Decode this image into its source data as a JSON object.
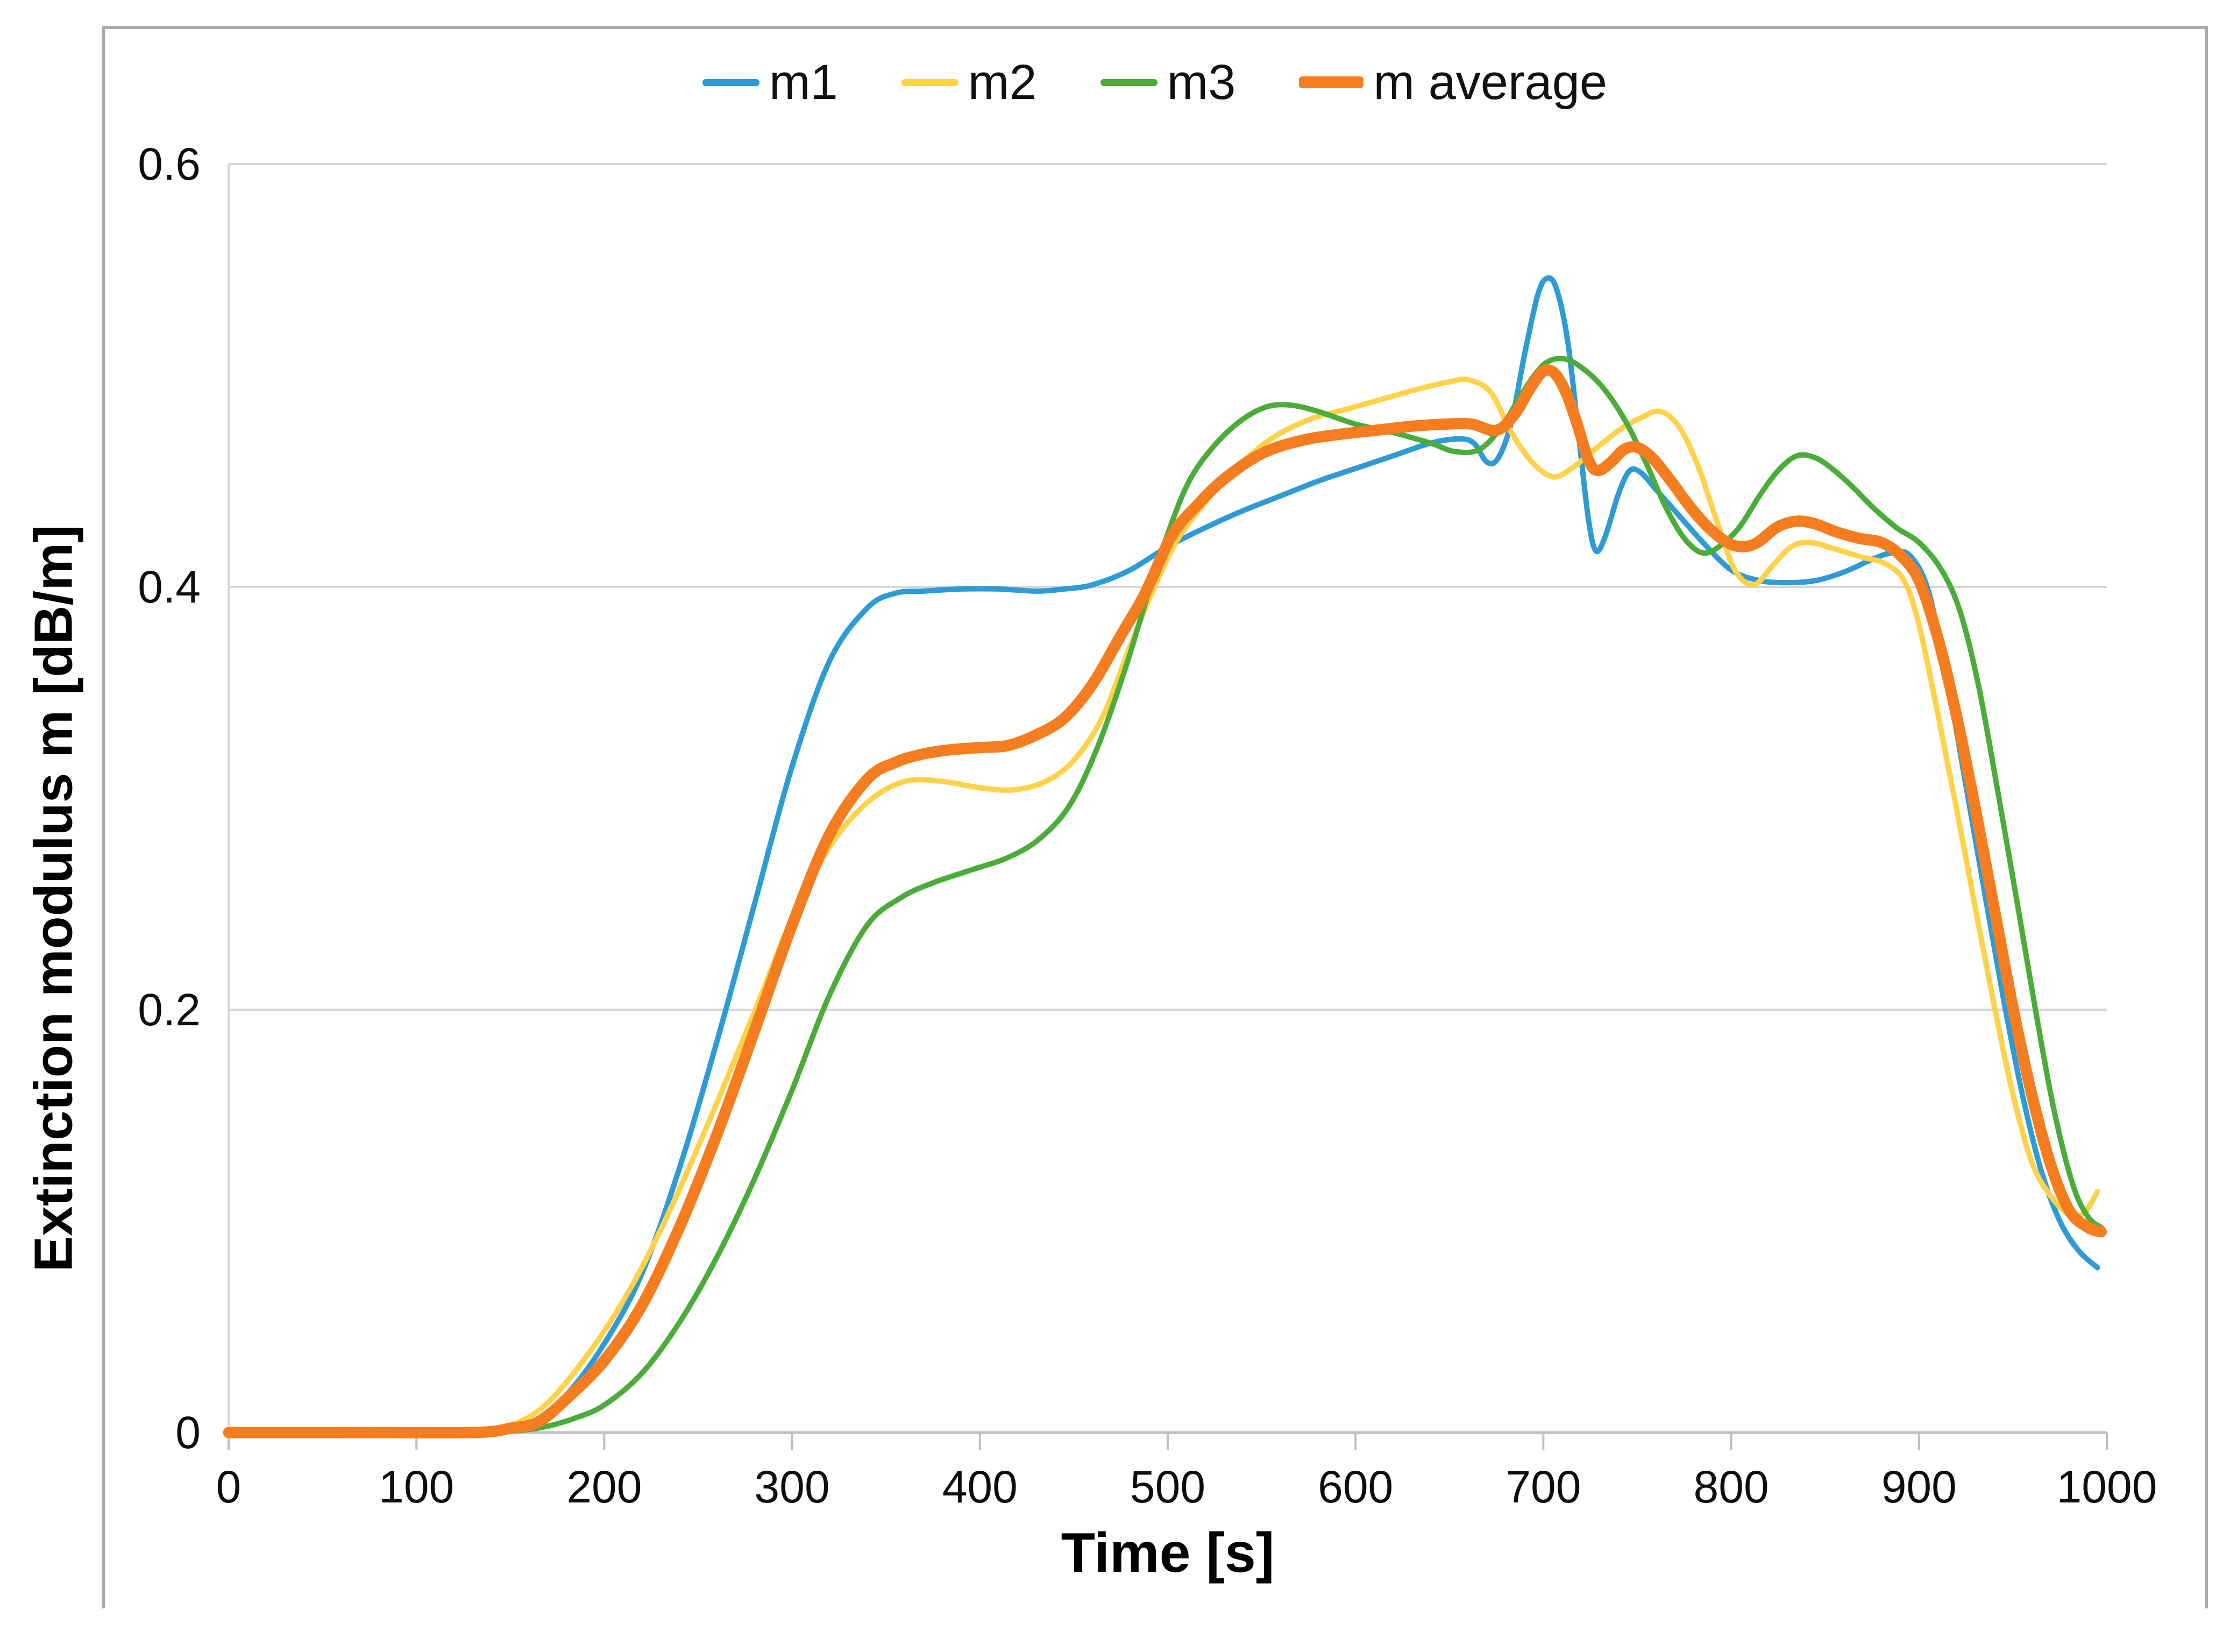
{
  "chart_data": {
    "type": "line",
    "title": "",
    "xlabel": "Time [s]",
    "ylabel": "Extinction modulus m [dB/m]",
    "xlim": [
      0,
      1000
    ],
    "ylim": [
      0,
      0.6
    ],
    "x_ticks": [
      0,
      100,
      200,
      300,
      400,
      500,
      600,
      700,
      800,
      900,
      1000
    ],
    "x_tick_labels": [
      "0",
      "100",
      "200",
      "300",
      "400",
      "500",
      "600",
      "700",
      "800",
      "900",
      "1000"
    ],
    "y_ticks": [
      0,
      0.2,
      0.4,
      0.6
    ],
    "y_tick_labels": [
      "0",
      "0.2",
      "0.4",
      "0.6"
    ],
    "grid": "horizontal gridlines at 0.2, 0.4, 0.6",
    "legend_position": "top-center",
    "axis_color": "#bfbfbf",
    "grid_color": "#d6d6d6",
    "frame_color": "#ababab",
    "series": [
      {
        "name": "m1",
        "color": "#2E9BD5",
        "width": 10,
        "points": [
          [
            0,
            0
          ],
          [
            60,
            0
          ],
          [
            120,
            0
          ],
          [
            145,
            0.001
          ],
          [
            160,
            0.004
          ],
          [
            180,
            0.018
          ],
          [
            200,
            0.042
          ],
          [
            220,
            0.075
          ],
          [
            240,
            0.125
          ],
          [
            260,
            0.185
          ],
          [
            280,
            0.25
          ],
          [
            300,
            0.315
          ],
          [
            320,
            0.365
          ],
          [
            340,
            0.39
          ],
          [
            355,
            0.397
          ],
          [
            370,
            0.398
          ],
          [
            390,
            0.399
          ],
          [
            410,
            0.399
          ],
          [
            430,
            0.398
          ],
          [
            445,
            0.399
          ],
          [
            460,
            0.401
          ],
          [
            480,
            0.408
          ],
          [
            500,
            0.419
          ],
          [
            520,
            0.428
          ],
          [
            540,
            0.436
          ],
          [
            560,
            0.443
          ],
          [
            580,
            0.45
          ],
          [
            600,
            0.456
          ],
          [
            620,
            0.462
          ],
          [
            640,
            0.468
          ],
          [
            655,
            0.47
          ],
          [
            663,
            0.468
          ],
          [
            670,
            0.459
          ],
          [
            676,
            0.461
          ],
          [
            683,
            0.478
          ],
          [
            690,
            0.51
          ],
          [
            697,
            0.538
          ],
          [
            702,
            0.546
          ],
          [
            707,
            0.541
          ],
          [
            713,
            0.516
          ],
          [
            719,
            0.47
          ],
          [
            724,
            0.432
          ],
          [
            728,
            0.417
          ],
          [
            733,
            0.424
          ],
          [
            740,
            0.444
          ],
          [
            746,
            0.455
          ],
          [
            752,
            0.454
          ],
          [
            760,
            0.446
          ],
          [
            770,
            0.436
          ],
          [
            785,
            0.421
          ],
          [
            800,
            0.408
          ],
          [
            815,
            0.403
          ],
          [
            830,
            0.402
          ],
          [
            845,
            0.403
          ],
          [
            860,
            0.407
          ],
          [
            875,
            0.413
          ],
          [
            885,
            0.416
          ],
          [
            895,
            0.415
          ],
          [
            905,
            0.398
          ],
          [
            915,
            0.356
          ],
          [
            925,
            0.306
          ],
          [
            935,
            0.255
          ],
          [
            945,
            0.205
          ],
          [
            955,
            0.16
          ],
          [
            965,
            0.124
          ],
          [
            975,
            0.1
          ],
          [
            985,
            0.086
          ],
          [
            995,
            0.078
          ]
        ]
      },
      {
        "name": "m2",
        "color": "#FFD24A",
        "width": 10,
        "points": [
          [
            0,
            0
          ],
          [
            60,
            0
          ],
          [
            120,
            0
          ],
          [
            138,
            0.001
          ],
          [
            152,
            0.004
          ],
          [
            166,
            0.011
          ],
          [
            180,
            0.024
          ],
          [
            200,
            0.048
          ],
          [
            220,
            0.078
          ],
          [
            240,
            0.115
          ],
          [
            260,
            0.156
          ],
          [
            280,
            0.199
          ],
          [
            300,
            0.243
          ],
          [
            320,
            0.277
          ],
          [
            340,
            0.298
          ],
          [
            360,
            0.308
          ],
          [
            380,
            0.308
          ],
          [
            400,
            0.305
          ],
          [
            418,
            0.304
          ],
          [
            435,
            0.308
          ],
          [
            450,
            0.318
          ],
          [
            465,
            0.338
          ],
          [
            480,
            0.372
          ],
          [
            492,
            0.398
          ],
          [
            505,
            0.422
          ],
          [
            520,
            0.44
          ],
          [
            535,
            0.455
          ],
          [
            555,
            0.47
          ],
          [
            575,
            0.479
          ],
          [
            595,
            0.484
          ],
          [
            615,
            0.489
          ],
          [
            635,
            0.494
          ],
          [
            650,
            0.497
          ],
          [
            660,
            0.498
          ],
          [
            672,
            0.492
          ],
          [
            683,
            0.473
          ],
          [
            694,
            0.459
          ],
          [
            705,
            0.452
          ],
          [
            715,
            0.456
          ],
          [
            726,
            0.464
          ],
          [
            740,
            0.474
          ],
          [
            752,
            0.48
          ],
          [
            762,
            0.483
          ],
          [
            772,
            0.476
          ],
          [
            782,
            0.458
          ],
          [
            792,
            0.432
          ],
          [
            802,
            0.408
          ],
          [
            812,
            0.401
          ],
          [
            822,
            0.41
          ],
          [
            832,
            0.419
          ],
          [
            842,
            0.421
          ],
          [
            855,
            0.418
          ],
          [
            870,
            0.414
          ],
          [
            882,
            0.411
          ],
          [
            892,
            0.403
          ],
          [
            900,
            0.382
          ],
          [
            910,
            0.34
          ],
          [
            920,
            0.295
          ],
          [
            930,
            0.248
          ],
          [
            940,
            0.202
          ],
          [
            950,
            0.16
          ],
          [
            960,
            0.128
          ],
          [
            970,
            0.112
          ],
          [
            980,
            0.103
          ],
          [
            988,
            0.104
          ],
          [
            995,
            0.114
          ]
        ]
      },
      {
        "name": "m3",
        "color": "#4CAC39",
        "width": 10,
        "points": [
          [
            0,
            0
          ],
          [
            60,
            0
          ],
          [
            130,
            0
          ],
          [
            155,
            0.001
          ],
          [
            170,
            0.003
          ],
          [
            185,
            0.007
          ],
          [
            200,
            0.013
          ],
          [
            220,
            0.028
          ],
          [
            240,
            0.052
          ],
          [
            260,
            0.083
          ],
          [
            280,
            0.12
          ],
          [
            300,
            0.162
          ],
          [
            320,
            0.207
          ],
          [
            340,
            0.24
          ],
          [
            358,
            0.253
          ],
          [
            375,
            0.26
          ],
          [
            395,
            0.266
          ],
          [
            415,
            0.272
          ],
          [
            432,
            0.281
          ],
          [
            448,
            0.297
          ],
          [
            463,
            0.325
          ],
          [
            478,
            0.363
          ],
          [
            490,
            0.398
          ],
          [
            502,
            0.43
          ],
          [
            512,
            0.451
          ],
          [
            524,
            0.466
          ],
          [
            538,
            0.478
          ],
          [
            552,
            0.485
          ],
          [
            565,
            0.486
          ],
          [
            580,
            0.483
          ],
          [
            600,
            0.477
          ],
          [
            620,
            0.473
          ],
          [
            640,
            0.468
          ],
          [
            653,
            0.464
          ],
          [
            666,
            0.465
          ],
          [
            678,
            0.476
          ],
          [
            689,
            0.492
          ],
          [
            700,
            0.505
          ],
          [
            710,
            0.508
          ],
          [
            720,
            0.504
          ],
          [
            732,
            0.494
          ],
          [
            744,
            0.478
          ],
          [
            755,
            0.458
          ],
          [
            765,
            0.438
          ],
          [
            775,
            0.423
          ],
          [
            785,
            0.416
          ],
          [
            795,
            0.42
          ],
          [
            805,
            0.429
          ],
          [
            815,
            0.443
          ],
          [
            825,
            0.455
          ],
          [
            835,
            0.462
          ],
          [
            845,
            0.461
          ],
          [
            855,
            0.455
          ],
          [
            865,
            0.447
          ],
          [
            875,
            0.438
          ],
          [
            888,
            0.428
          ],
          [
            900,
            0.421
          ],
          [
            912,
            0.408
          ],
          [
            922,
            0.388
          ],
          [
            932,
            0.352
          ],
          [
            942,
            0.303
          ],
          [
            952,
            0.252
          ],
          [
            962,
            0.2
          ],
          [
            972,
            0.152
          ],
          [
            982,
            0.117
          ],
          [
            990,
            0.102
          ],
          [
            997,
            0.097
          ]
        ]
      },
      {
        "name": "m average",
        "color": "#F57D1F",
        "width": 21,
        "points": [
          [
            0,
            0
          ],
          [
            60,
            0
          ],
          [
            130,
            0
          ],
          [
            150,
            0.002
          ],
          [
            165,
            0.005
          ],
          [
            180,
            0.016
          ],
          [
            200,
            0.034
          ],
          [
            220,
            0.06
          ],
          [
            240,
            0.097
          ],
          [
            260,
            0.141
          ],
          [
            280,
            0.19
          ],
          [
            300,
            0.24
          ],
          [
            320,
            0.283
          ],
          [
            340,
            0.309
          ],
          [
            355,
            0.317
          ],
          [
            370,
            0.321
          ],
          [
            385,
            0.323
          ],
          [
            400,
            0.324
          ],
          [
            415,
            0.325
          ],
          [
            430,
            0.33
          ],
          [
            445,
            0.338
          ],
          [
            460,
            0.354
          ],
          [
            475,
            0.377
          ],
          [
            488,
            0.397
          ],
          [
            502,
            0.424
          ],
          [
            515,
            0.438
          ],
          [
            530,
            0.451
          ],
          [
            550,
            0.463
          ],
          [
            570,
            0.469
          ],
          [
            590,
            0.472
          ],
          [
            610,
            0.474
          ],
          [
            630,
            0.476
          ],
          [
            648,
            0.477
          ],
          [
            662,
            0.477
          ],
          [
            675,
            0.474
          ],
          [
            685,
            0.482
          ],
          [
            693,
            0.494
          ],
          [
            700,
            0.502
          ],
          [
            706,
            0.501
          ],
          [
            712,
            0.492
          ],
          [
            718,
            0.477
          ],
          [
            724,
            0.46
          ],
          [
            729,
            0.455
          ],
          [
            736,
            0.459
          ],
          [
            743,
            0.465
          ],
          [
            750,
            0.466
          ],
          [
            758,
            0.461
          ],
          [
            768,
            0.45
          ],
          [
            778,
            0.438
          ],
          [
            788,
            0.428
          ],
          [
            798,
            0.421
          ],
          [
            806,
            0.419
          ],
          [
            814,
            0.421
          ],
          [
            824,
            0.428
          ],
          [
            834,
            0.431
          ],
          [
            844,
            0.43
          ],
          [
            856,
            0.426
          ],
          [
            868,
            0.423
          ],
          [
            880,
            0.421
          ],
          [
            890,
            0.415
          ],
          [
            900,
            0.403
          ],
          [
            910,
            0.376
          ],
          [
            920,
            0.339
          ],
          [
            930,
            0.295
          ],
          [
            940,
            0.248
          ],
          [
            950,
            0.201
          ],
          [
            960,
            0.16
          ],
          [
            970,
            0.127
          ],
          [
            980,
            0.105
          ],
          [
            990,
            0.097
          ],
          [
            997,
            0.095
          ]
        ]
      }
    ]
  }
}
